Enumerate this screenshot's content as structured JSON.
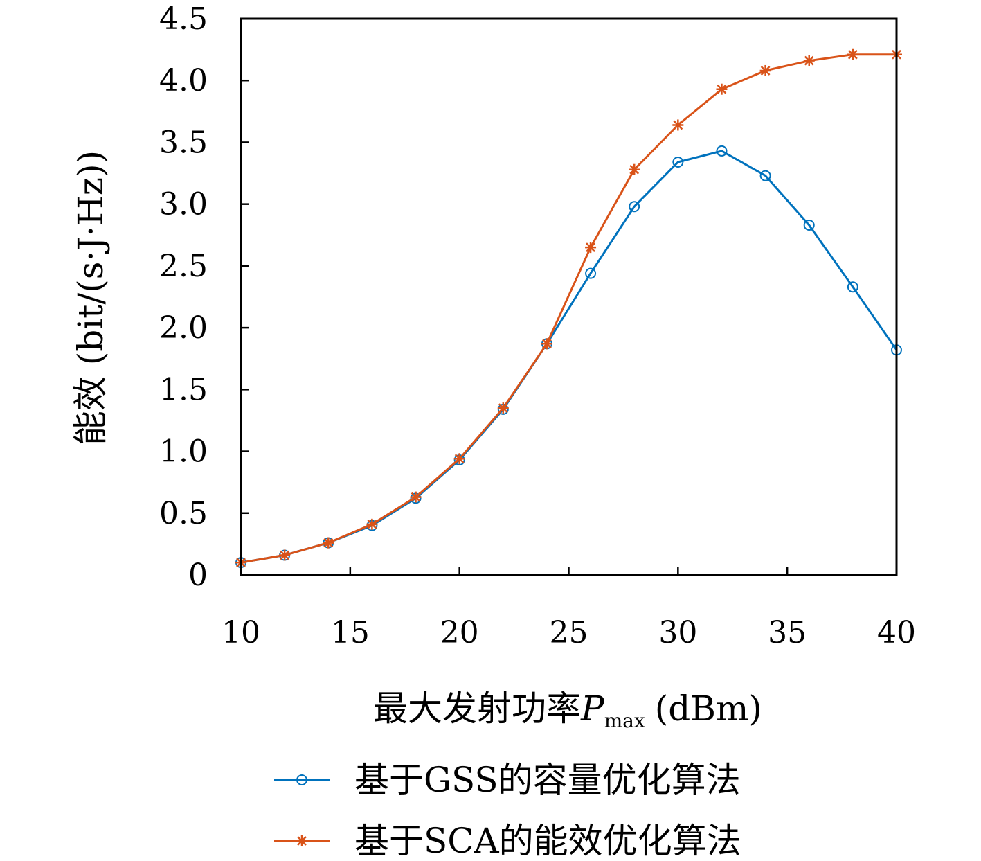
{
  "chart_data": {
    "type": "line",
    "xlabel_main": "最大发射功率",
    "xlabel_var": "P",
    "xlabel_sub": "max",
    "xlabel_unit": "(dBm)",
    "ylabel": "能效 (bit/(s·J·Hz))",
    "xlim": [
      10,
      40
    ],
    "ylim": [
      0,
      4.5
    ],
    "xticks": [
      10,
      15,
      20,
      25,
      30,
      35,
      40
    ],
    "xtick_labels": [
      "10",
      "15",
      "20",
      "25",
      "30",
      "35",
      "40"
    ],
    "yticks": [
      0,
      0.5,
      1.0,
      1.5,
      2.0,
      2.5,
      3.0,
      3.5,
      4.0,
      4.5
    ],
    "ytick_labels": [
      "0",
      "0.5",
      "1.0",
      "1.5",
      "2.0",
      "2.5",
      "3.0",
      "3.5",
      "4.0",
      "4.5"
    ],
    "grid": false,
    "legend_position": "bottom",
    "x": [
      10,
      12,
      14,
      16,
      18,
      20,
      22,
      24,
      26,
      28,
      30,
      32,
      34,
      36,
      38,
      40
    ],
    "series": [
      {
        "name": "基于GSS的容量优化算法",
        "color": "#0072BD",
        "marker": "circle",
        "values": [
          0.1,
          0.16,
          0.26,
          0.4,
          0.62,
          0.93,
          1.34,
          1.87,
          2.44,
          2.98,
          3.34,
          3.43,
          3.23,
          2.83,
          2.33,
          1.82
        ]
      },
      {
        "name": "基于SCA的能效优化算法",
        "color": "#D95319",
        "marker": "asterisk",
        "values": [
          0.1,
          0.16,
          0.26,
          0.41,
          0.63,
          0.94,
          1.35,
          1.87,
          2.65,
          3.28,
          3.64,
          3.93,
          4.08,
          4.16,
          4.21,
          4.21
        ]
      }
    ]
  }
}
